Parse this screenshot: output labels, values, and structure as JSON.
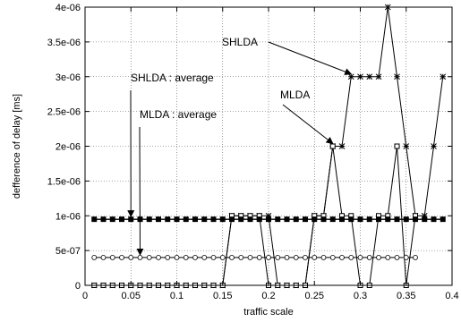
{
  "chart_data": {
    "type": "line",
    "title": "",
    "xlabel": "traffic scale",
    "ylabel": "defference of delay [ms]",
    "xlim": [
      0,
      0.4
    ],
    "ylim": [
      0,
      4e-06
    ],
    "grid": true,
    "legend": "none",
    "xticks": [
      0,
      0.05,
      0.1,
      0.15,
      0.2,
      0.25,
      0.3,
      0.35,
      0.4
    ],
    "xtick_labels": [
      "0",
      "0.05",
      "0.1",
      "0.15",
      "0.2",
      "0.25",
      "0.3",
      "0.35",
      "0.4"
    ],
    "yticks": [
      0,
      5e-07,
      1e-06,
      1.5e-06,
      2e-06,
      2.5e-06,
      3e-06,
      3.5e-06,
      4e-06
    ],
    "ytick_labels": [
      "0",
      "5e-07",
      "1e-06",
      "1.5e-06",
      "2e-06",
      "2.5e-06",
      "3e-06",
      "3.5e-06",
      "4e-06"
    ],
    "series": [
      {
        "marker": "star",
        "x": [
          0.01,
          0.02,
          0.03,
          0.04,
          0.05,
          0.06,
          0.07,
          0.08,
          0.09,
          0.1,
          0.11,
          0.12,
          0.13,
          0.14,
          0.15,
          0.16,
          0.17,
          0.18,
          0.19,
          0.2,
          0.21,
          0.22,
          0.23,
          0.24,
          0.25,
          0.26,
          0.27,
          0.28,
          0.29,
          0.3,
          0.31,
          0.32,
          0.33,
          0.34,
          0.35,
          0.36,
          0.37,
          0.38,
          0.39
        ],
        "y": [
          0,
          0,
          0,
          0,
          0,
          0,
          0,
          0,
          0,
          0,
          0,
          0,
          0,
          0,
          0,
          1e-06,
          1e-06,
          1e-06,
          1e-06,
          1e-06,
          0,
          0,
          0,
          0,
          1e-06,
          1e-06,
          2e-06,
          2e-06,
          3e-06,
          3e-06,
          3e-06,
          3e-06,
          4e-06,
          3e-06,
          2e-06,
          1e-06,
          1e-06,
          2e-06,
          3e-06
        ]
      },
      {
        "marker": "square",
        "x": [
          0.01,
          0.02,
          0.03,
          0.04,
          0.05,
          0.06,
          0.07,
          0.08,
          0.09,
          0.1,
          0.11,
          0.12,
          0.13,
          0.14,
          0.15,
          0.16,
          0.17,
          0.18,
          0.19,
          0.2,
          0.21,
          0.22,
          0.23,
          0.24,
          0.25,
          0.26,
          0.27,
          0.28,
          0.29,
          0.3,
          0.31,
          0.32,
          0.33,
          0.34,
          0.35,
          0.36
        ],
        "y": [
          0,
          0,
          0,
          0,
          0,
          0,
          0,
          0,
          0,
          0,
          0,
          0,
          0,
          0,
          0,
          1e-06,
          1e-06,
          1e-06,
          1e-06,
          0,
          0,
          0,
          0,
          0,
          1e-06,
          1e-06,
          2e-06,
          1e-06,
          1e-06,
          0,
          0,
          1e-06,
          1e-06,
          2e-06,
          0,
          1e-06
        ]
      },
      {
        "marker": "filled-square",
        "x": [
          0.01,
          0.02,
          0.03,
          0.04,
          0.05,
          0.06,
          0.07,
          0.08,
          0.09,
          0.1,
          0.11,
          0.12,
          0.13,
          0.14,
          0.15,
          0.16,
          0.17,
          0.18,
          0.19,
          0.2,
          0.21,
          0.22,
          0.23,
          0.24,
          0.25,
          0.26,
          0.27,
          0.28,
          0.29,
          0.3,
          0.31,
          0.32,
          0.33,
          0.34,
          0.35,
          0.36,
          0.37,
          0.38,
          0.39
        ],
        "y": [
          9.5e-07,
          9.5e-07,
          9.5e-07,
          9.5e-07,
          9.5e-07,
          9.5e-07,
          9.5e-07,
          9.5e-07,
          9.5e-07,
          9.5e-07,
          9.5e-07,
          9.5e-07,
          9.5e-07,
          9.5e-07,
          9.5e-07,
          9.5e-07,
          9.5e-07,
          9.5e-07,
          9.5e-07,
          9.5e-07,
          9.5e-07,
          9.5e-07,
          9.5e-07,
          9.5e-07,
          9.5e-07,
          9.5e-07,
          9.5e-07,
          9.5e-07,
          9.5e-07,
          9.5e-07,
          9.5e-07,
          9.5e-07,
          9.5e-07,
          9.5e-07,
          9.5e-07,
          9.5e-07,
          9.5e-07,
          9.5e-07,
          9.5e-07
        ]
      },
      {
        "marker": "circle",
        "x": [
          0.01,
          0.02,
          0.03,
          0.04,
          0.05,
          0.06,
          0.07,
          0.08,
          0.09,
          0.1,
          0.11,
          0.12,
          0.13,
          0.14,
          0.15,
          0.16,
          0.17,
          0.18,
          0.19,
          0.2,
          0.21,
          0.22,
          0.23,
          0.24,
          0.25,
          0.26,
          0.27,
          0.28,
          0.29,
          0.3,
          0.31,
          0.32,
          0.33,
          0.34,
          0.35,
          0.36
        ],
        "y": [
          4e-07,
          4e-07,
          4e-07,
          4e-07,
          4e-07,
          4e-07,
          4e-07,
          4e-07,
          4e-07,
          4e-07,
          4e-07,
          4e-07,
          4e-07,
          4e-07,
          4e-07,
          4e-07,
          4e-07,
          4e-07,
          4e-07,
          4e-07,
          4e-07,
          4e-07,
          4e-07,
          4e-07,
          4e-07,
          4e-07,
          4e-07,
          4e-07,
          4e-07,
          4e-07,
          4e-07,
          4e-07,
          4e-07,
          4e-07,
          4e-07,
          4e-07
        ]
      }
    ],
    "annotations": [
      {
        "text": "SHLDA",
        "target": [
          0.29,
          3e-06
        ]
      },
      {
        "text": "MLDA",
        "target": [
          0.27,
          2e-06
        ]
      },
      {
        "text": "SHLDA : average",
        "target": [
          0.05,
          9.5e-07
        ]
      },
      {
        "text": "MLDA : average",
        "target": [
          0.06,
          4e-07
        ]
      }
    ]
  }
}
